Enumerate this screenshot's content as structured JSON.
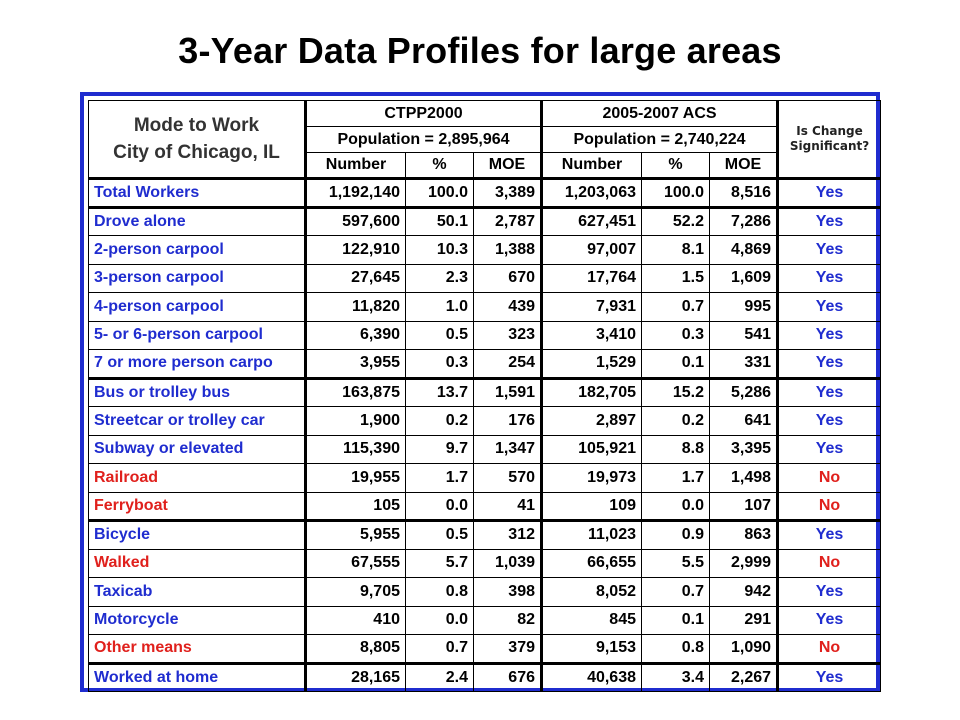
{
  "title": "3-Year Data Profiles for large areas",
  "table": {
    "title_line1": "Mode to Work",
    "title_line2": "City of Chicago, IL",
    "group1": {
      "name": "CTPP2000",
      "population": "Population = 2,895,964"
    },
    "group2": {
      "name": "2005-2007 ACS",
      "population": "Population = 2,740,224"
    },
    "significance_line1": "Is Change",
    "significance_line2": "Significant?",
    "columns": [
      "Number",
      "%",
      "MOE",
      "Number",
      "%",
      "MOE"
    ],
    "colors": {
      "blue": "#1f2ccf",
      "red": "#e0201c",
      "border": "#1f2ccf"
    },
    "rows": [
      {
        "label": "Total Workers",
        "c_num": "1,192,140",
        "c_pct": "100.0",
        "c_moe": "3,389",
        "a_num": "1,203,063",
        "a_pct": "100.0",
        "a_moe": "8,516",
        "sig": "Yes"
      },
      {
        "label": "Drove alone",
        "c_num": "597,600",
        "c_pct": "50.1",
        "c_moe": "2,787",
        "a_num": "627,451",
        "a_pct": "52.2",
        "a_moe": "7,286",
        "sig": "Yes"
      },
      {
        "label": "2-person carpool",
        "c_num": "122,910",
        "c_pct": "10.3",
        "c_moe": "1,388",
        "a_num": "97,007",
        "a_pct": "8.1",
        "a_moe": "4,869",
        "sig": "Yes"
      },
      {
        "label": "3-person carpool",
        "c_num": "27,645",
        "c_pct": "2.3",
        "c_moe": "670",
        "a_num": "17,764",
        "a_pct": "1.5",
        "a_moe": "1,609",
        "sig": "Yes"
      },
      {
        "label": "4-person carpool",
        "c_num": "11,820",
        "c_pct": "1.0",
        "c_moe": "439",
        "a_num": "7,931",
        "a_pct": "0.7",
        "a_moe": "995",
        "sig": "Yes"
      },
      {
        "label": "5- or 6-person carpool",
        "c_num": "6,390",
        "c_pct": "0.5",
        "c_moe": "323",
        "a_num": "3,410",
        "a_pct": "0.3",
        "a_moe": "541",
        "sig": "Yes"
      },
      {
        "label": "7 or more person carpo",
        "c_num": "3,955",
        "c_pct": "0.3",
        "c_moe": "254",
        "a_num": "1,529",
        "a_pct": "0.1",
        "a_moe": "331",
        "sig": "Yes"
      },
      {
        "label": "Bus or trolley bus",
        "c_num": "163,875",
        "c_pct": "13.7",
        "c_moe": "1,591",
        "a_num": "182,705",
        "a_pct": "15.2",
        "a_moe": "5,286",
        "sig": "Yes"
      },
      {
        "label": "Streetcar or trolley car",
        "c_num": "1,900",
        "c_pct": "0.2",
        "c_moe": "176",
        "a_num": "2,897",
        "a_pct": "0.2",
        "a_moe": "641",
        "sig": "Yes"
      },
      {
        "label": "Subway or elevated",
        "c_num": "115,390",
        "c_pct": "9.7",
        "c_moe": "1,347",
        "a_num": "105,921",
        "a_pct": "8.8",
        "a_moe": "3,395",
        "sig": "Yes"
      },
      {
        "label": "Railroad",
        "c_num": "19,955",
        "c_pct": "1.7",
        "c_moe": "570",
        "a_num": "19,973",
        "a_pct": "1.7",
        "a_moe": "1,498",
        "sig": "No"
      },
      {
        "label": "Ferryboat",
        "c_num": "105",
        "c_pct": "0.0",
        "c_moe": "41",
        "a_num": "109",
        "a_pct": "0.0",
        "a_moe": "107",
        "sig": "No"
      },
      {
        "label": "Bicycle",
        "c_num": "5,955",
        "c_pct": "0.5",
        "c_moe": "312",
        "a_num": "11,023",
        "a_pct": "0.9",
        "a_moe": "863",
        "sig": "Yes"
      },
      {
        "label": "Walked",
        "c_num": "67,555",
        "c_pct": "5.7",
        "c_moe": "1,039",
        "a_num": "66,655",
        "a_pct": "5.5",
        "a_moe": "2,999",
        "sig": "No"
      },
      {
        "label": "Taxicab",
        "c_num": "9,705",
        "c_pct": "0.8",
        "c_moe": "398",
        "a_num": "8,052",
        "a_pct": "0.7",
        "a_moe": "942",
        "sig": "Yes"
      },
      {
        "label": "Motorcycle",
        "c_num": "410",
        "c_pct": "0.0",
        "c_moe": "82",
        "a_num": "845",
        "a_pct": "0.1",
        "a_moe": "291",
        "sig": "Yes"
      },
      {
        "label": "Other means",
        "c_num": "8,805",
        "c_pct": "0.7",
        "c_moe": "379",
        "a_num": "9,153",
        "a_pct": "0.8",
        "a_moe": "1,090",
        "sig": "No"
      },
      {
        "label": "Worked at home",
        "c_num": "28,165",
        "c_pct": "2.4",
        "c_moe": "676",
        "a_num": "40,638",
        "a_pct": "3.4",
        "a_moe": "2,267",
        "sig": "Yes"
      }
    ]
  }
}
